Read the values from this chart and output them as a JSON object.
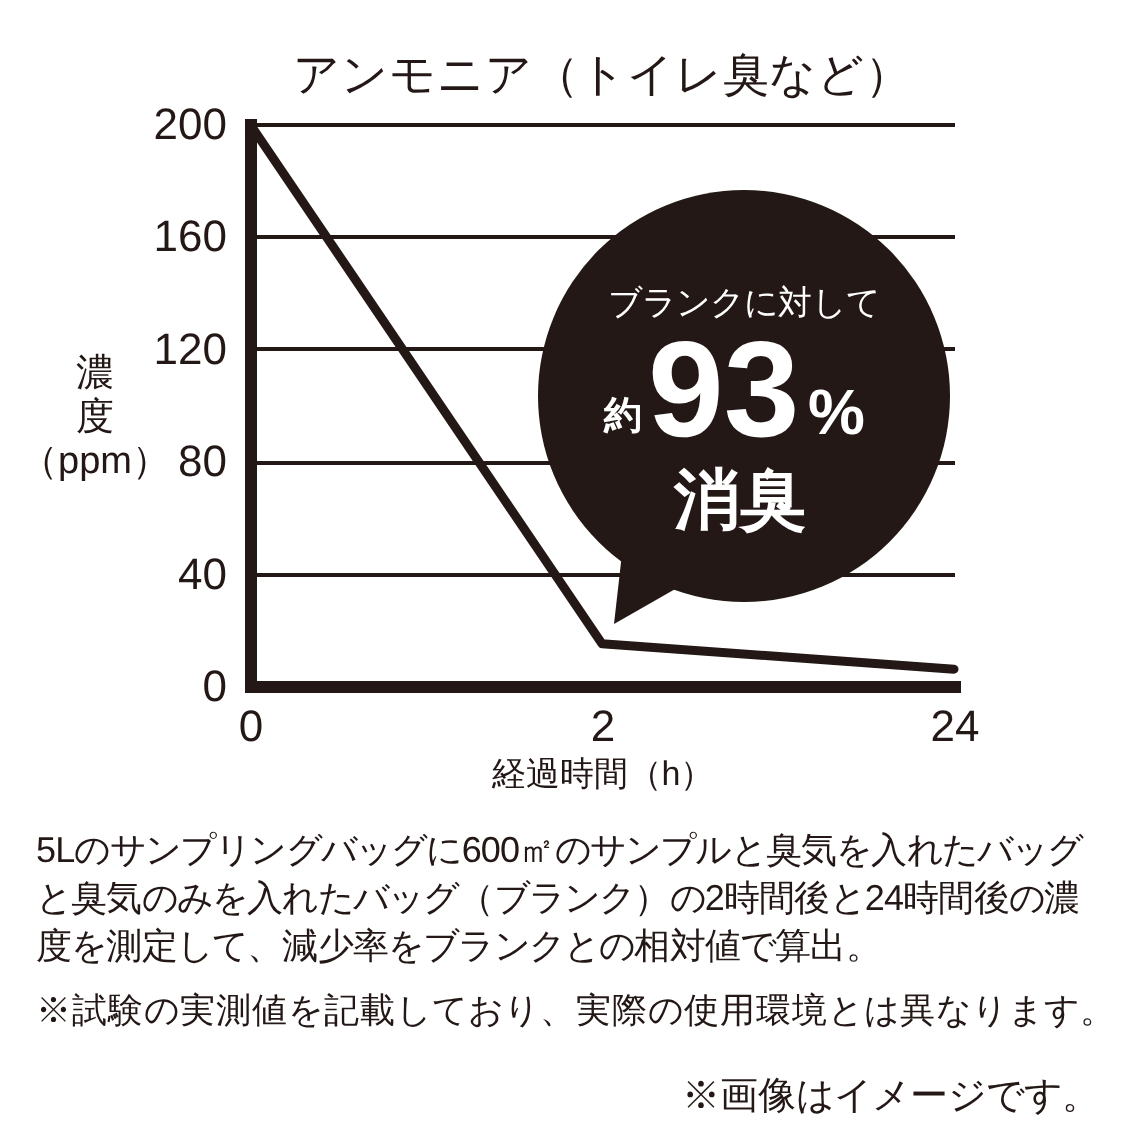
{
  "chart_data": {
    "type": "line",
    "title": "アンモニア（トイレ臭など）",
    "xlabel": "経過時間（h）",
    "ylabel": "濃度（ppm）",
    "categories": [
      "0",
      "2",
      "24"
    ],
    "values": [
      200,
      15,
      6
    ],
    "color": "#231815",
    "ylim": [
      0,
      200
    ],
    "yticks": [
      0,
      40,
      80,
      120,
      160,
      200
    ],
    "grid": "y",
    "annotations": [
      "ブランクに対して",
      "約",
      "93",
      "%",
      "消臭",
      "5Lのサンプリングバッグに600㎡のサンプルと臭気を入れたバッグと臭気のみを入れたバッグ（ブランク）の2時間後と24時間後の濃度を測定して、減少率をブランクとの相対値で算出。",
      "※試験の実測値を記載しており、実際の使用環境とは異なります。",
      "※画像はイメージです。"
    ]
  }
}
